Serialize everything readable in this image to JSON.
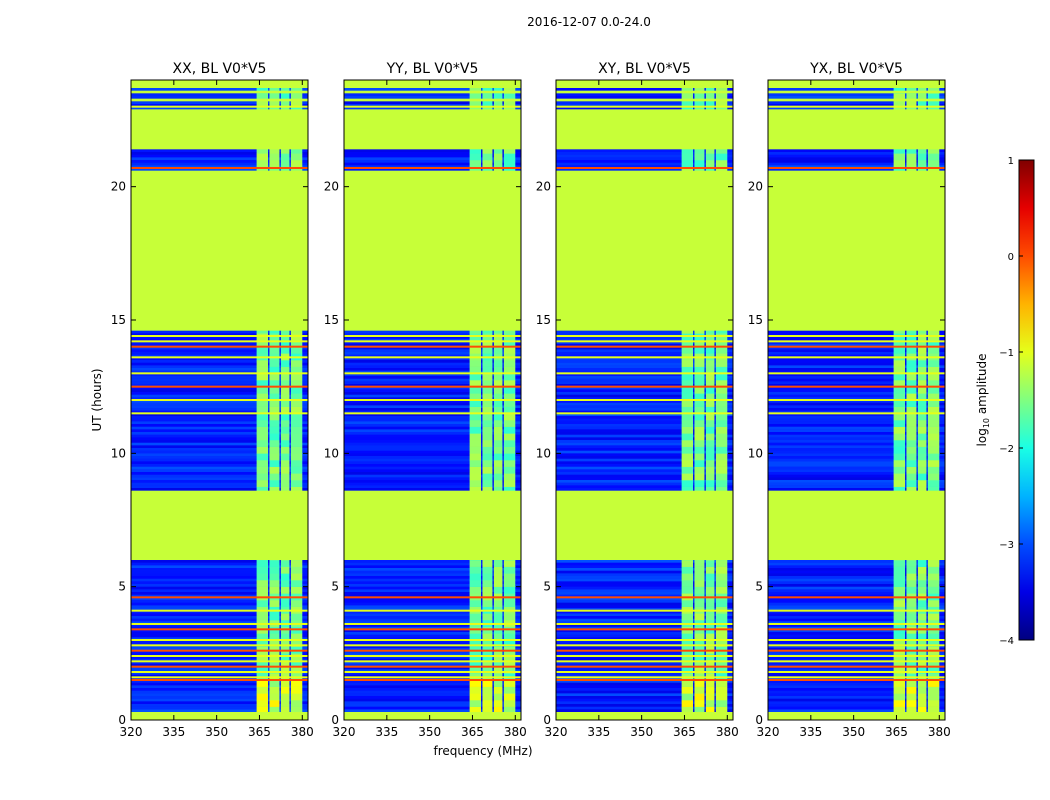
{
  "figure": {
    "suptitle": "2016-12-07 0.0-24.0"
  },
  "chart_data": {
    "type": "heatmap",
    "colormap": "jet",
    "panels": [
      {
        "title": "XX, BL V0*V5",
        "pol": "XX"
      },
      {
        "title": "YY, BL V0*V5",
        "pol": "YY"
      },
      {
        "title": "XY, BL V0*V5",
        "pol": "XY"
      },
      {
        "title": "YX, BL V0*V5",
        "pol": "YX"
      }
    ],
    "xlabel": "frequency (MHz)",
    "ylabel": "UT (hours)",
    "xlim": [
      320,
      382
    ],
    "ylim": [
      0,
      24
    ],
    "xticks": [
      320,
      335,
      350,
      365,
      380
    ],
    "yticks": [
      0,
      5,
      10,
      15,
      20
    ],
    "colorbar": {
      "label": "log",
      "label_sub": "10",
      "label_rest": " amplitude",
      "range": [
        -4,
        1
      ],
      "ticks": [
        "1",
        "0",
        "−1",
        "−2",
        "−3",
        "−4"
      ]
    },
    "flagged_value": -1.15,
    "flagged_time_ranges_hours": [
      [
        0.0,
        0.3
      ],
      [
        6.0,
        8.6
      ],
      [
        14.6,
        20.6
      ],
      [
        21.4,
        22.9
      ],
      [
        23.2,
        23.3
      ],
      [
        23.5,
        23.6
      ],
      [
        23.7,
        24.0
      ]
    ],
    "rfi_time_lines_hours": [
      1.5,
      1.6,
      1.8,
      2.0,
      2.2,
      2.4,
      2.6,
      2.8,
      3.0,
      3.4,
      3.6,
      4.1,
      4.6,
      11.5,
      12.0,
      12.5,
      13.0,
      13.6,
      14.0,
      14.2,
      14.4,
      20.7,
      23.0
    ],
    "bright_freq_bands_mhz": [
      [
        364,
        368
      ],
      [
        368.5,
        372
      ],
      [
        372.5,
        375.5
      ],
      [
        376,
        380
      ]
    ]
  }
}
